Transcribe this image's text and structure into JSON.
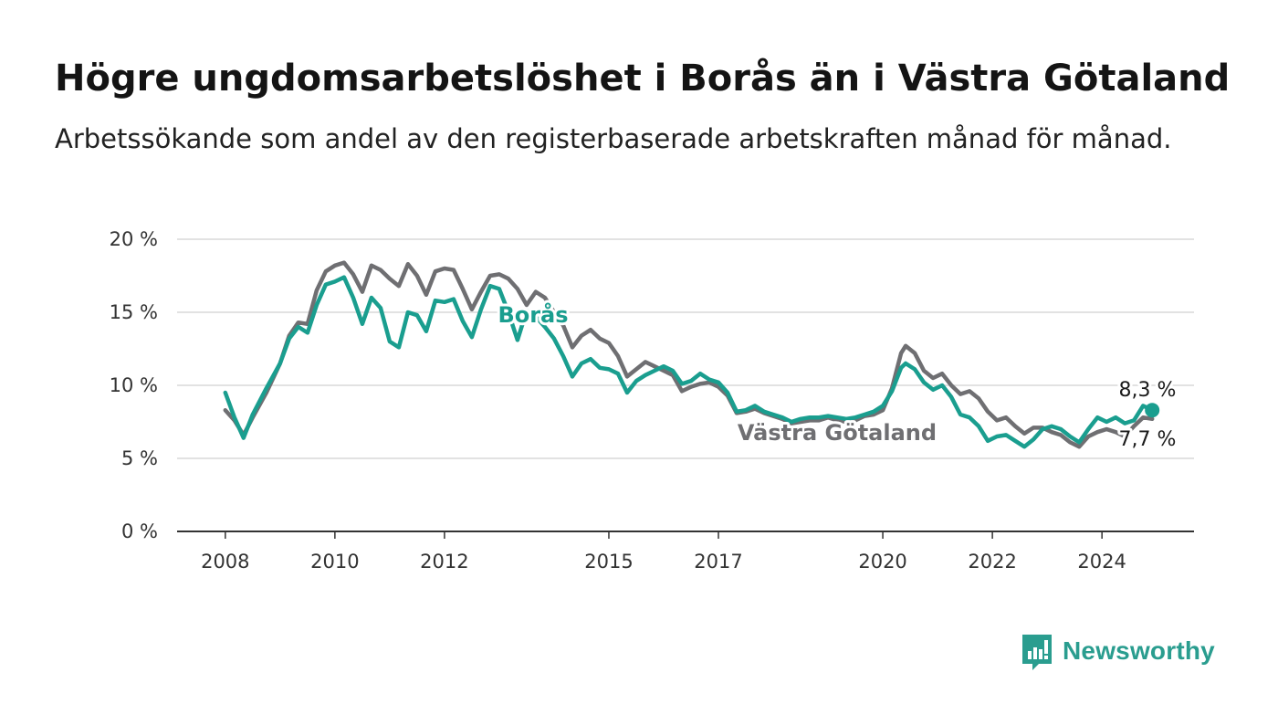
{
  "header": {
    "title": "Högre ungdomsarbetslöshet i Borås än i Västra Götaland",
    "subtitle": "Arbetssökande som andel av den registerbaserade arbetskraften månad för månad."
  },
  "branding": {
    "logo_text": "Newsworthy"
  },
  "colors": {
    "boras": "#1a9e8f",
    "vastra_gotaland": "#6f6f72",
    "grid": "#d9d9d9",
    "axis": "#333333"
  },
  "chart_data": {
    "type": "line",
    "title": "Högre ungdomsarbetslöshet i Borås än i Västra Götaland",
    "subtitle": "Arbetssökande som andel av den registerbaserade arbetskraften månad för månad.",
    "y_tick_labels": [
      "0 %",
      "5 %",
      "10 %",
      "15 %",
      "20 %"
    ],
    "x_tick_labels": [
      "2008",
      "2010",
      "2012",
      "2015",
      "2017",
      "2020",
      "2022",
      "2024"
    ],
    "ylim": [
      0,
      20
    ],
    "grid": "horizontal",
    "annotations": {
      "boras_label": "Borås",
      "vg_label": "Västra Götaland",
      "boras_last": "8,3 %",
      "vg_last": "7,7 %"
    },
    "series": [
      {
        "name": "Västra Götaland",
        "points": [
          [
            "2008-01",
            8.3
          ],
          [
            "2008-03",
            7.6
          ],
          [
            "2008-05",
            6.6
          ],
          [
            "2008-07",
            7.8
          ],
          [
            "2008-10",
            9.5
          ],
          [
            "2009-01",
            11.5
          ],
          [
            "2009-03",
            13.4
          ],
          [
            "2009-05",
            14.3
          ],
          [
            "2009-07",
            14.2
          ],
          [
            "2009-09",
            16.5
          ],
          [
            "2009-11",
            17.8
          ],
          [
            "2010-01",
            18.2
          ],
          [
            "2010-03",
            18.4
          ],
          [
            "2010-05",
            17.6
          ],
          [
            "2010-07",
            16.4
          ],
          [
            "2010-09",
            18.2
          ],
          [
            "2010-11",
            17.9
          ],
          [
            "2011-01",
            17.3
          ],
          [
            "2011-03",
            16.8
          ],
          [
            "2011-05",
            18.3
          ],
          [
            "2011-07",
            17.5
          ],
          [
            "2011-09",
            16.2
          ],
          [
            "2011-11",
            17.8
          ],
          [
            "2012-01",
            18.0
          ],
          [
            "2012-03",
            17.9
          ],
          [
            "2012-05",
            16.6
          ],
          [
            "2012-07",
            15.2
          ],
          [
            "2012-09",
            16.4
          ],
          [
            "2012-11",
            17.5
          ],
          [
            "2013-01",
            17.6
          ],
          [
            "2013-03",
            17.3
          ],
          [
            "2013-05",
            16.6
          ],
          [
            "2013-07",
            15.5
          ],
          [
            "2013-09",
            16.4
          ],
          [
            "2013-11",
            16.0
          ],
          [
            "2014-01",
            15.0
          ],
          [
            "2014-03",
            14.1
          ],
          [
            "2014-05",
            12.6
          ],
          [
            "2014-07",
            13.4
          ],
          [
            "2014-09",
            13.8
          ],
          [
            "2014-11",
            13.2
          ],
          [
            "2015-01",
            12.9
          ],
          [
            "2015-03",
            12.0
          ],
          [
            "2015-05",
            10.6
          ],
          [
            "2015-07",
            11.1
          ],
          [
            "2015-09",
            11.6
          ],
          [
            "2015-11",
            11.3
          ],
          [
            "2016-01",
            11.0
          ],
          [
            "2016-03",
            10.7
          ],
          [
            "2016-05",
            9.6
          ],
          [
            "2016-07",
            9.9
          ],
          [
            "2016-09",
            10.1
          ],
          [
            "2016-11",
            10.2
          ],
          [
            "2017-01",
            9.9
          ],
          [
            "2017-03",
            9.3
          ],
          [
            "2017-05",
            8.1
          ],
          [
            "2017-07",
            8.2
          ],
          [
            "2017-09",
            8.4
          ],
          [
            "2017-11",
            8.1
          ],
          [
            "2018-01",
            7.9
          ],
          [
            "2018-03",
            7.7
          ],
          [
            "2018-05",
            7.4
          ],
          [
            "2018-07",
            7.5
          ],
          [
            "2018-09",
            7.6
          ],
          [
            "2018-11",
            7.6
          ],
          [
            "2019-01",
            7.8
          ],
          [
            "2019-03",
            7.6
          ],
          [
            "2019-05",
            7.5
          ],
          [
            "2019-07",
            7.6
          ],
          [
            "2019-09",
            7.9
          ],
          [
            "2019-11",
            8.0
          ],
          [
            "2020-01",
            8.3
          ],
          [
            "2020-03",
            9.8
          ],
          [
            "2020-05",
            12.2
          ],
          [
            "2020-06",
            12.7
          ],
          [
            "2020-08",
            12.2
          ],
          [
            "2020-10",
            11.0
          ],
          [
            "2020-12",
            10.5
          ],
          [
            "2021-02",
            10.8
          ],
          [
            "2021-04",
            10.0
          ],
          [
            "2021-06",
            9.4
          ],
          [
            "2021-08",
            9.6
          ],
          [
            "2021-10",
            9.1
          ],
          [
            "2021-12",
            8.2
          ],
          [
            "2022-02",
            7.6
          ],
          [
            "2022-04",
            7.8
          ],
          [
            "2022-06",
            7.2
          ],
          [
            "2022-08",
            6.7
          ],
          [
            "2022-10",
            7.1
          ],
          [
            "2022-12",
            7.1
          ],
          [
            "2023-02",
            6.8
          ],
          [
            "2023-04",
            6.6
          ],
          [
            "2023-06",
            6.1
          ],
          [
            "2023-08",
            5.8
          ],
          [
            "2023-10",
            6.5
          ],
          [
            "2023-12",
            6.8
          ],
          [
            "2024-02",
            7.0
          ],
          [
            "2024-04",
            6.8
          ],
          [
            "2024-06",
            6.5
          ],
          [
            "2024-08",
            7.2
          ],
          [
            "2024-10",
            7.8
          ],
          [
            "2024-12",
            7.7
          ]
        ]
      },
      {
        "name": "Borås",
        "points": [
          [
            "2008-01",
            9.5
          ],
          [
            "2008-03",
            7.8
          ],
          [
            "2008-05",
            6.4
          ],
          [
            "2008-07",
            8.0
          ],
          [
            "2008-10",
            9.8
          ],
          [
            "2009-01",
            11.5
          ],
          [
            "2009-03",
            13.2
          ],
          [
            "2009-05",
            14.0
          ],
          [
            "2009-07",
            13.6
          ],
          [
            "2009-09",
            15.5
          ],
          [
            "2009-11",
            16.9
          ],
          [
            "2010-01",
            17.1
          ],
          [
            "2010-03",
            17.4
          ],
          [
            "2010-05",
            16.0
          ],
          [
            "2010-07",
            14.2
          ],
          [
            "2010-09",
            16.0
          ],
          [
            "2010-11",
            15.3
          ],
          [
            "2011-01",
            13.0
          ],
          [
            "2011-03",
            12.6
          ],
          [
            "2011-05",
            15.0
          ],
          [
            "2011-07",
            14.8
          ],
          [
            "2011-09",
            13.7
          ],
          [
            "2011-11",
            15.8
          ],
          [
            "2012-01",
            15.7
          ],
          [
            "2012-03",
            15.9
          ],
          [
            "2012-05",
            14.4
          ],
          [
            "2012-07",
            13.3
          ],
          [
            "2012-09",
            15.2
          ],
          [
            "2012-11",
            16.8
          ],
          [
            "2013-01",
            16.6
          ],
          [
            "2013-03",
            15.0
          ],
          [
            "2013-05",
            13.1
          ],
          [
            "2013-07",
            15.1
          ],
          [
            "2013-09",
            14.7
          ],
          [
            "2013-11",
            14.0
          ],
          [
            "2014-01",
            13.2
          ],
          [
            "2014-03",
            12.0
          ],
          [
            "2014-05",
            10.6
          ],
          [
            "2014-07",
            11.5
          ],
          [
            "2014-09",
            11.8
          ],
          [
            "2014-11",
            11.2
          ],
          [
            "2015-01",
            11.1
          ],
          [
            "2015-03",
            10.8
          ],
          [
            "2015-05",
            9.5
          ],
          [
            "2015-07",
            10.3
          ],
          [
            "2015-09",
            10.7
          ],
          [
            "2015-11",
            11.0
          ],
          [
            "2016-01",
            11.3
          ],
          [
            "2016-03",
            11.0
          ],
          [
            "2016-05",
            10.1
          ],
          [
            "2016-07",
            10.3
          ],
          [
            "2016-09",
            10.8
          ],
          [
            "2016-11",
            10.4
          ],
          [
            "2017-01",
            10.2
          ],
          [
            "2017-03",
            9.5
          ],
          [
            "2017-05",
            8.2
          ],
          [
            "2017-07",
            8.3
          ],
          [
            "2017-09",
            8.6
          ],
          [
            "2017-11",
            8.2
          ],
          [
            "2018-01",
            8.0
          ],
          [
            "2018-03",
            7.8
          ],
          [
            "2018-05",
            7.5
          ],
          [
            "2018-07",
            7.7
          ],
          [
            "2018-09",
            7.8
          ],
          [
            "2018-11",
            7.8
          ],
          [
            "2019-01",
            7.9
          ],
          [
            "2019-03",
            7.8
          ],
          [
            "2019-05",
            7.7
          ],
          [
            "2019-07",
            7.8
          ],
          [
            "2019-09",
            8.0
          ],
          [
            "2019-11",
            8.2
          ],
          [
            "2020-01",
            8.6
          ],
          [
            "2020-03",
            9.6
          ],
          [
            "2020-05",
            11.2
          ],
          [
            "2020-06",
            11.5
          ],
          [
            "2020-08",
            11.1
          ],
          [
            "2020-10",
            10.2
          ],
          [
            "2020-12",
            9.7
          ],
          [
            "2021-02",
            10.0
          ],
          [
            "2021-04",
            9.2
          ],
          [
            "2021-06",
            8.0
          ],
          [
            "2021-08",
            7.8
          ],
          [
            "2021-10",
            7.2
          ],
          [
            "2021-12",
            6.2
          ],
          [
            "2022-02",
            6.5
          ],
          [
            "2022-04",
            6.6
          ],
          [
            "2022-06",
            6.2
          ],
          [
            "2022-08",
            5.8
          ],
          [
            "2022-10",
            6.3
          ],
          [
            "2022-12",
            7.0
          ],
          [
            "2023-02",
            7.2
          ],
          [
            "2023-04",
            7.0
          ],
          [
            "2023-06",
            6.5
          ],
          [
            "2023-08",
            6.1
          ],
          [
            "2023-10",
            7.0
          ],
          [
            "2023-12",
            7.8
          ],
          [
            "2024-02",
            7.5
          ],
          [
            "2024-04",
            7.8
          ],
          [
            "2024-06",
            7.4
          ],
          [
            "2024-08",
            7.6
          ],
          [
            "2024-10",
            8.6
          ],
          [
            "2024-12",
            8.3
          ]
        ]
      }
    ]
  }
}
